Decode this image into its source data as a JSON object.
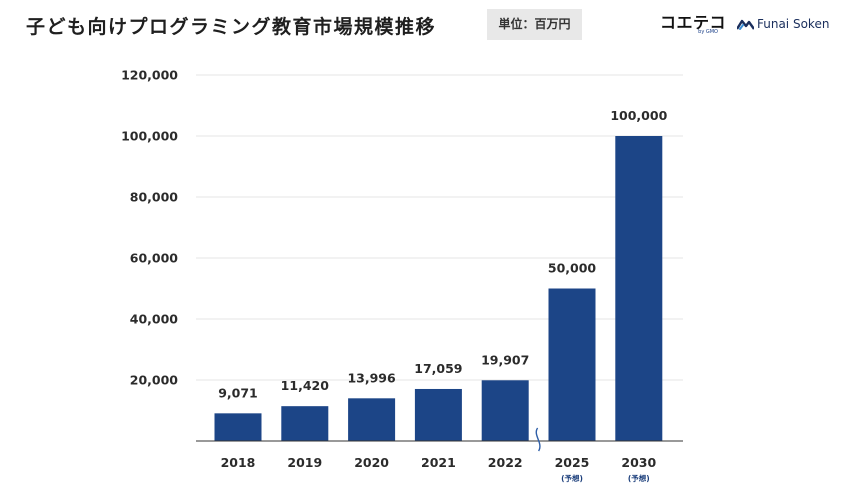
{
  "header": {
    "title": "子ども向けプログラミング教育市場規模推移",
    "unit_label": "単位：百万円"
  },
  "logos": {
    "koeteco_main": "コエテコ",
    "koeteco_sub": "by GMO",
    "funai_text": "Funai Soken",
    "funai_icon": "wave-icon"
  },
  "colors": {
    "bar": "#1c4587",
    "grid": "#e6e6e6",
    "axis": "#333333",
    "break_mark": "#2f5fa8"
  },
  "chart_data": {
    "type": "bar",
    "categories": [
      "2018",
      "2019",
      "2020",
      "2021",
      "2022",
      "2025",
      "2030"
    ],
    "category_notes": [
      "",
      "",
      "",
      "",
      "",
      "(予想)",
      "(予想)"
    ],
    "values": [
      9071,
      11420,
      13996,
      17059,
      19907,
      50000,
      100000
    ],
    "data_labels": [
      "9,071",
      "11,420",
      "13,996",
      "17,059",
      "19,907",
      "50,000",
      "100,000"
    ],
    "ylim": [
      0,
      120000
    ],
    "yticks": [
      20000,
      40000,
      60000,
      80000,
      100000,
      120000
    ],
    "ytick_labels": [
      "20,000",
      "40,000",
      "60,000",
      "80,000",
      "100,000",
      "120,000"
    ],
    "grid": true,
    "axis_break_between": [
      "2022",
      "2025"
    ],
    "title": "子ども向けプログラミング教育市場規模推移",
    "xlabel": "",
    "ylabel": "",
    "unit": "百万円"
  }
}
